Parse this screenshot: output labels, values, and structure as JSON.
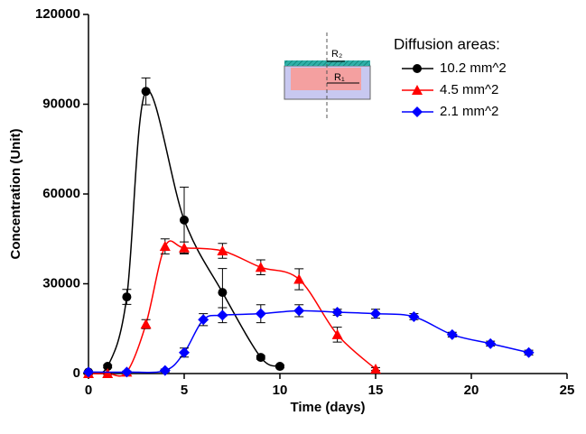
{
  "chart_data": {
    "type": "line",
    "xlabel": "Time (days)",
    "ylabel": "Concentration (Unit)",
    "legend_title": "Diffusion areas:",
    "legend": "upper right",
    "xlim": [
      0,
      25
    ],
    "xticks": [
      0,
      5,
      10,
      15,
      20,
      25
    ],
    "ylim": [
      0,
      120000
    ],
    "yticks": [
      0,
      30000,
      60000,
      90000,
      120000
    ],
    "inset_labels": [
      "R₂",
      "R₁"
    ],
    "series": [
      {
        "name": "10.2 mm^2",
        "color": "#000000",
        "marker": "circle",
        "x": [
          0,
          1,
          2,
          3,
          5,
          7,
          9,
          10
        ],
        "values": [
          500,
          2400,
          25600,
          94300,
          51300,
          27100,
          5400,
          2400
        ],
        "errors": [
          300,
          500,
          2500,
          4500,
          11000,
          8000,
          600,
          500
        ]
      },
      {
        "name": "4.5 mm^2",
        "color": "#ff0000",
        "marker": "triangle",
        "x": [
          0,
          1,
          2,
          3,
          4,
          5,
          7,
          9,
          11,
          13,
          15
        ],
        "values": [
          0,
          0,
          500,
          16500,
          42500,
          42000,
          41000,
          35500,
          31500,
          13000,
          1500
        ],
        "errors": [
          300,
          300,
          300,
          1500,
          2500,
          2000,
          2500,
          2500,
          3500,
          2500,
          500
        ]
      },
      {
        "name": "2.1 mm^2",
        "color": "#0000ff",
        "marker": "diamond",
        "x": [
          0,
          2,
          4,
          5,
          6,
          7,
          9,
          11,
          13,
          15,
          17,
          19,
          21,
          23
        ],
        "values": [
          500,
          500,
          1000,
          7000,
          18000,
          19500,
          20000,
          21000,
          20500,
          20000,
          19000,
          13000,
          10000,
          7000
        ],
        "errors": [
          300,
          300,
          500,
          1500,
          2000,
          2500,
          3000,
          2000,
          1000,
          1500,
          1000,
          800,
          800,
          800
        ]
      }
    ]
  }
}
